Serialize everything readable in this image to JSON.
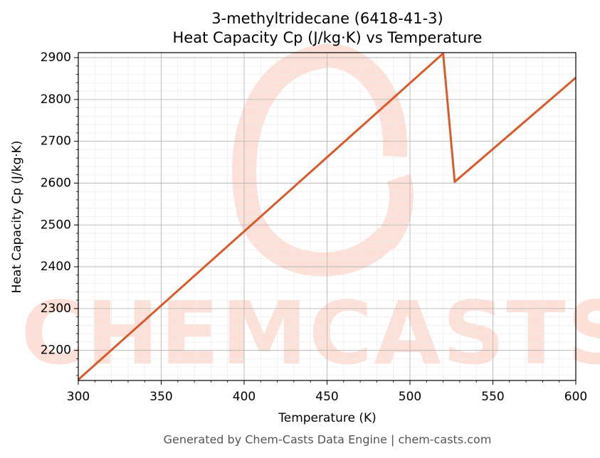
{
  "chart_data": {
    "type": "line",
    "title": [
      "3-methyltridecane (6418-41-3)",
      "Heat Capacity Cp (J/kg·K) vs Temperature"
    ],
    "xlabel": "Temperature (K)",
    "ylabel": "Heat Capacity Cp (J/kg·K)",
    "watermark": "CHEMCASTS",
    "footer": "Generated by Chem-Casts Data Engine | chem-casts.com",
    "series": [
      {
        "name": "Cp",
        "color": "#d95a2b",
        "x": [
          300,
          520,
          527,
          600
        ],
        "values": [
          2130,
          2910,
          2603,
          2852
        ]
      }
    ],
    "xlim": [
      300,
      600
    ],
    "xticks": [
      300,
      350,
      400,
      450,
      500,
      550,
      600
    ],
    "ylim": [
      2128,
      2912
    ],
    "yticks": [
      2200,
      2300,
      2400,
      2500,
      2600,
      2700,
      2800,
      2900
    ],
    "grid": true,
    "minor_grid": true
  }
}
